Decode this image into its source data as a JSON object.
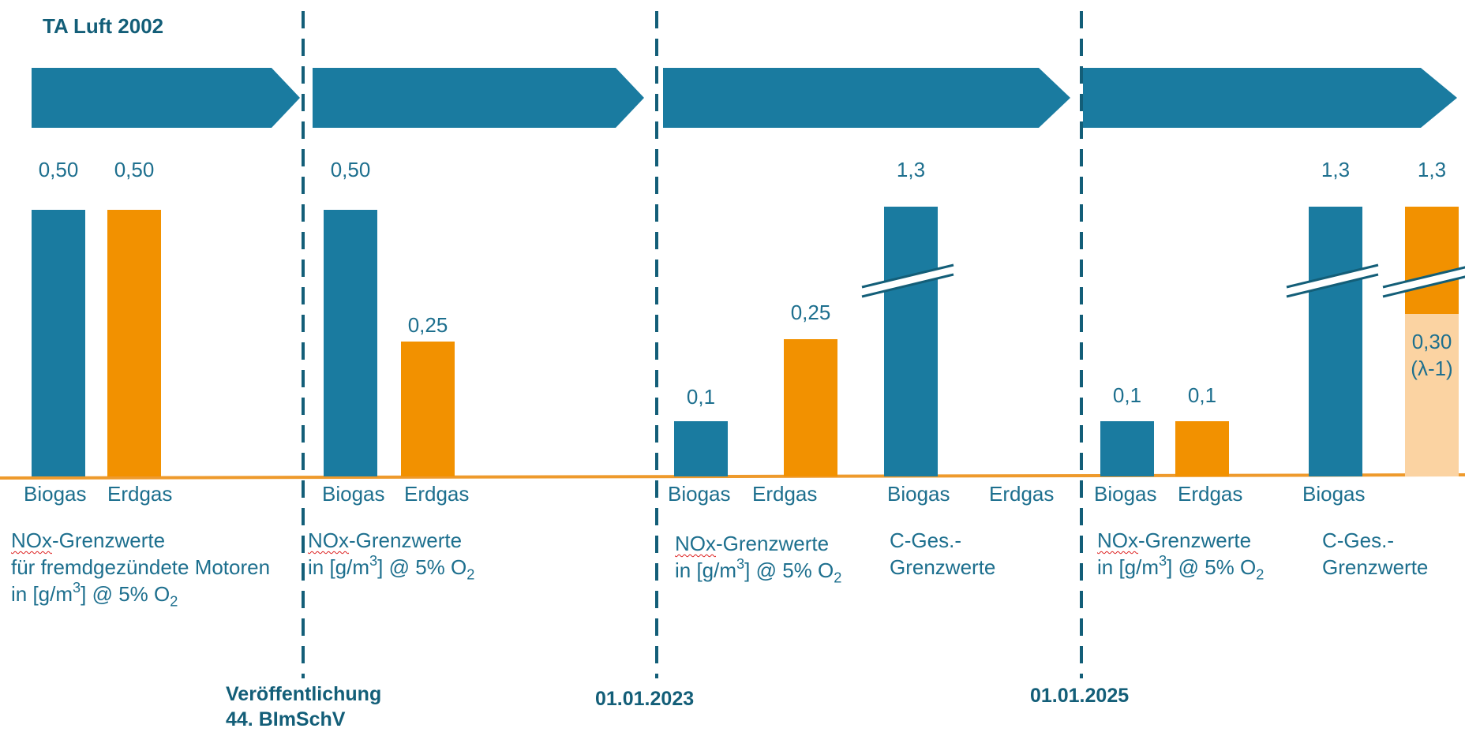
{
  "title": "TA Luft 2002",
  "colors": {
    "biogas": "#1a7ba0",
    "erdgas": "#f29100",
    "erdgas_light": "#fbd3a2",
    "axis": "#ee9a2c",
    "divider": "#135e78"
  },
  "phase_arrows": 4,
  "chart_data": {
    "type": "bar",
    "unit": "g/m³ @ 5% O2",
    "groups": [
      {
        "description": [
          "NOx-Grenzwerte",
          "für fremdgezündete Motoren",
          "in [g/m³] @ 5% O2"
        ],
        "bars": [
          {
            "category": "Biogas",
            "value": 0.5,
            "label": "0,50",
            "color": "biogas"
          },
          {
            "category": "Erdgas",
            "value": 0.5,
            "label": "0,50",
            "color": "erdgas"
          }
        ]
      },
      {
        "description": [
          "NOx-Grenzwerte",
          "in [g/m³] @ 5% O2"
        ],
        "bars": [
          {
            "category": "Biogas",
            "value": 0.5,
            "label": "0,50",
            "color": "biogas"
          },
          {
            "category": "Erdgas",
            "value": 0.25,
            "label": "0,25",
            "color": "erdgas"
          }
        ]
      },
      {
        "description": [
          "NOx-Grenzwerte",
          "in [g/m³] @ 5% O2"
        ],
        "bars": [
          {
            "category": "Biogas",
            "value": 0.1,
            "label": "0,1",
            "color": "biogas"
          },
          {
            "category": "Erdgas",
            "value": 0.25,
            "label": "0,25",
            "color": "erdgas"
          }
        ]
      },
      {
        "description": [
          "C-Ges.-",
          "Grenzwerte"
        ],
        "bars": [
          {
            "category": "Biogas",
            "value": 1.3,
            "label": "1,3",
            "color": "biogas",
            "axis_break": true
          },
          {
            "category": "Erdgas",
            "value": null,
            "label": "",
            "color": "erdgas"
          }
        ]
      },
      {
        "description": [
          "NOx-Grenzwerte",
          "in [g/m³] @ 5% O2"
        ],
        "bars": [
          {
            "category": "Biogas",
            "value": 0.1,
            "label": "0,1",
            "color": "biogas"
          },
          {
            "category": "Erdgas",
            "value": 0.1,
            "label": "0,1",
            "color": "erdgas"
          }
        ]
      },
      {
        "description": [
          "C-Ges.-",
          "Grenzwerte"
        ],
        "bars": [
          {
            "category": "Biogas",
            "value": 1.3,
            "label": "1,3",
            "color": "biogas",
            "axis_break": true
          },
          {
            "category": "Erdgas",
            "value": 1.3,
            "label": "1,3",
            "color": "erdgas",
            "axis_break": true,
            "note_value": 0.3,
            "note_label": [
              "0,30",
              "(λ-1)"
            ]
          }
        ]
      }
    ],
    "milestones": [
      {
        "label": [
          "Veröffentlichung",
          "44. BImSchV"
        ]
      },
      {
        "label": [
          "01.01.2023"
        ]
      },
      {
        "label": [
          "01.01.2025"
        ]
      }
    ],
    "axis_break_symbol": true,
    "legend": "none",
    "grid": false
  }
}
